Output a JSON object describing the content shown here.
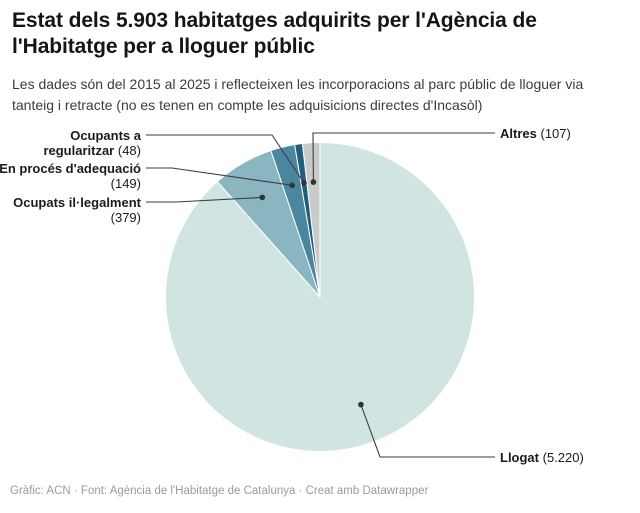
{
  "header": {
    "title": "Estat dels 5.903 habitatges adquirits per l'Agència de l'Habitatge per a lloguer públic",
    "subtitle": "Les dades són del 2015 al 2025 i reflecteixen les incorporacions al parc públic de lloguer via tanteig i retracte (no es tenen en compte les adquisicions directes d'Incasòl)"
  },
  "footer": {
    "text": "Gràfic: ACN · Font: Agència de l'Habitatge de Catalunya · Creat amb Datawrapper"
  },
  "chart_data": {
    "type": "pie",
    "title": "Estat dels 5.903 habitatges adquirits per l'Agència de l'Habitatge per a lloguer públic",
    "total": 5903,
    "start_angle_deg": 0,
    "direction": "clockwise",
    "legend_position": "callout-labels",
    "background": "#ffffff",
    "connector_color": "#3d3d3d",
    "slice_stroke": "#ffffff",
    "slices": [
      {
        "key": "llogat",
        "label": "Llogat",
        "value": 5220,
        "value_label": "(5.220)",
        "color": "#d0e5e2"
      },
      {
        "key": "ocupats-illegalment",
        "label": "Ocupats il·legalment",
        "value": 379,
        "value_label": "(379)",
        "color": "#8ab6c1"
      },
      {
        "key": "en-proces-adequacio",
        "label": "En procés d'adequació",
        "value": 149,
        "value_label": "(149)",
        "color": "#4a86a0"
      },
      {
        "key": "ocupants-a-regularitzar",
        "label": "Ocupants a regularitzar",
        "value": 48,
        "value_label": "(48)",
        "color": "#1e5f7e"
      },
      {
        "key": "altres",
        "label": "Altres",
        "value": 107,
        "value_label": "(107)",
        "color": "#c9cbca"
      }
    ]
  }
}
